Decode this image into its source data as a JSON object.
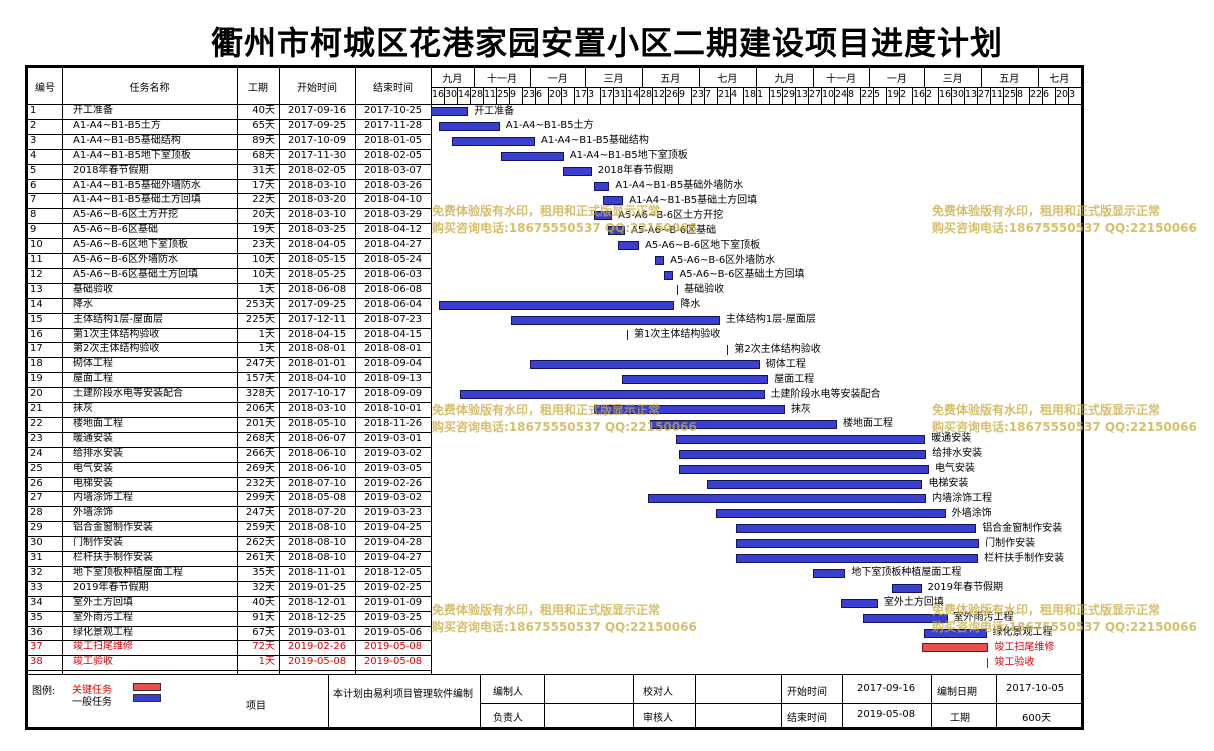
{
  "title": "衢州市柯城区花港家园安置小区二期建设项目进度计划",
  "columns": {
    "id": "编号",
    "name": "任务名称",
    "duration": "工期",
    "start": "开始时间",
    "end": "结束时间"
  },
  "months": [
    "九月",
    "十一月",
    "一月",
    "三月",
    "五月",
    "七月",
    "九月",
    "十一月",
    "一月",
    "三月",
    "五月",
    "七月"
  ],
  "days": [
    "16",
    "30",
    "14",
    "28",
    "11",
    "25",
    "9",
    "23",
    "6",
    "20",
    "3",
    "17",
    "3",
    "17",
    "31",
    "14",
    "28",
    "12",
    "26",
    "9",
    "23",
    "7",
    "21",
    "4",
    "18",
    "1",
    "15",
    "29",
    "13",
    "27",
    "10",
    "24",
    "8",
    "22",
    "5",
    "19",
    "2",
    "16",
    "2",
    "16",
    "30",
    "13",
    "27",
    "11",
    "25",
    "8",
    "22",
    "6",
    "20",
    "3"
  ],
  "tasks": [
    {
      "id": "1",
      "name": "开工准备",
      "dur": "40天",
      "start": "2017-09-16",
      "end": "2017-10-25",
      "label": "开工准备"
    },
    {
      "id": "2",
      "name": "A1-A4~B1-B5土方",
      "dur": "65天",
      "start": "2017-09-25",
      "end": "2017-11-28",
      "label": "A1-A4~B1-B5土方"
    },
    {
      "id": "3",
      "name": "A1-A4~B1-B5基础结构",
      "dur": "89天",
      "start": "2017-10-09",
      "end": "2018-01-05",
      "label": "A1-A4~B1-B5基础结构"
    },
    {
      "id": "4",
      "name": "A1-A4~B1-B5地下室顶板",
      "dur": "68天",
      "start": "2017-11-30",
      "end": "2018-02-05",
      "label": "A1-A4~B1-B5地下室顶板"
    },
    {
      "id": "5",
      "name": "2018年春节假期",
      "dur": "31天",
      "start": "2018-02-05",
      "end": "2018-03-07",
      "label": "2018年春节假期"
    },
    {
      "id": "6",
      "name": "A1-A4~B1-B5基础外墙防水",
      "dur": "17天",
      "start": "2018-03-10",
      "end": "2018-03-26",
      "label": "A1-A4~B1-B5基础外墙防水"
    },
    {
      "id": "7",
      "name": "A1-A4~B1-B5基础土方回填",
      "dur": "22天",
      "start": "2018-03-20",
      "end": "2018-04-10",
      "label": "A1-A4~B1-B5基础土方回填"
    },
    {
      "id": "8",
      "name": "A5-A6~B-6区土方开挖",
      "dur": "20天",
      "start": "2018-03-10",
      "end": "2018-03-29",
      "label": "A5-A6~B-6区土方开挖"
    },
    {
      "id": "9",
      "name": "A5-A6~B-6区基础",
      "dur": "19天",
      "start": "2018-03-25",
      "end": "2018-04-12",
      "label": "A5-A6~B-6区基础"
    },
    {
      "id": "10",
      "name": "A5-A6~B-6区地下室顶板",
      "dur": "23天",
      "start": "2018-04-05",
      "end": "2018-04-27",
      "label": "A5-A6~B-6区地下室顶板"
    },
    {
      "id": "11",
      "name": "A5-A6~B-6区外墙防水",
      "dur": "10天",
      "start": "2018-05-15",
      "end": "2018-05-24",
      "label": "A5-A6~B-6区外墙防水"
    },
    {
      "id": "12",
      "name": "A5-A6~B-6区基础土方回填",
      "dur": "10天",
      "start": "2018-05-25",
      "end": "2018-06-03",
      "label": "A5-A6~B-6区基础土方回填"
    },
    {
      "id": "13",
      "name": "基础验收",
      "dur": "1天",
      "start": "2018-06-08",
      "end": "2018-06-08",
      "label": "基础验收"
    },
    {
      "id": "14",
      "name": "降水",
      "dur": "253天",
      "start": "2017-09-25",
      "end": "2018-06-04",
      "label": "降水"
    },
    {
      "id": "15",
      "name": "主体结构1层-屋面层",
      "dur": "225天",
      "start": "2017-12-11",
      "end": "2018-07-23",
      "label": "主体结构1层-屋面层"
    },
    {
      "id": "16",
      "name": "第1次主体结构验收",
      "dur": "1天",
      "start": "2018-04-15",
      "end": "2018-04-15",
      "label": "第1次主体结构验收"
    },
    {
      "id": "17",
      "name": "第2次主体结构验收",
      "dur": "1天",
      "start": "2018-08-01",
      "end": "2018-08-01",
      "label": "第2次主体结构验收"
    },
    {
      "id": "18",
      "name": "砌体工程",
      "dur": "247天",
      "start": "2018-01-01",
      "end": "2018-09-04",
      "label": "砌体工程"
    },
    {
      "id": "19",
      "name": "屋面工程",
      "dur": "157天",
      "start": "2018-04-10",
      "end": "2018-09-13",
      "label": "屋面工程"
    },
    {
      "id": "20",
      "name": "土建阶段水电等安装配合",
      "dur": "328天",
      "start": "2017-10-17",
      "end": "2018-09-09",
      "label": "土建阶段水电等安装配合"
    },
    {
      "id": "21",
      "name": "抹灰",
      "dur": "206天",
      "start": "2018-03-10",
      "end": "2018-10-01",
      "label": "抹灰"
    },
    {
      "id": "22",
      "name": "楼地面工程",
      "dur": "201天",
      "start": "2018-05-10",
      "end": "2018-11-26",
      "label": "楼地面工程"
    },
    {
      "id": "23",
      "name": "暖通安装",
      "dur": "268天",
      "start": "2018-06-07",
      "end": "2019-03-01",
      "label": "暖通安装"
    },
    {
      "id": "24",
      "name": "给排水安装",
      "dur": "266天",
      "start": "2018-06-10",
      "end": "2019-03-02",
      "label": "给排水安装"
    },
    {
      "id": "25",
      "name": "电气安装",
      "dur": "269天",
      "start": "2018-06-10",
      "end": "2019-03-05",
      "label": "电气安装"
    },
    {
      "id": "26",
      "name": "电梯安装",
      "dur": "232天",
      "start": "2018-07-10",
      "end": "2019-02-26",
      "label": "电梯安装"
    },
    {
      "id": "27",
      "name": "内墙涂饰工程",
      "dur": "299天",
      "start": "2018-05-08",
      "end": "2019-03-02",
      "label": "内墙涂饰工程"
    },
    {
      "id": "28",
      "name": "外墙涂饰",
      "dur": "247天",
      "start": "2018-07-20",
      "end": "2019-03-23",
      "label": "外墙涂饰"
    },
    {
      "id": "29",
      "name": "铝合金窗制作安装",
      "dur": "259天",
      "start": "2018-08-10",
      "end": "2019-04-25",
      "label": "铝合金窗制作安装"
    },
    {
      "id": "30",
      "name": "门制作安装",
      "dur": "262天",
      "start": "2018-08-10",
      "end": "2019-04-28",
      "label": "门制作安装"
    },
    {
      "id": "31",
      "name": "栏杆扶手制作安装",
      "dur": "261天",
      "start": "2018-08-10",
      "end": "2019-04-27",
      "label": "栏杆扶手制作安装"
    },
    {
      "id": "32",
      "name": "地下室顶板种植屋面工程",
      "dur": "35天",
      "start": "2018-11-01",
      "end": "2018-12-05",
      "label": "地下室顶板种植屋面工程"
    },
    {
      "id": "33",
      "name": "2019年春节假期",
      "dur": "32天",
      "start": "2019-01-25",
      "end": "2019-02-25",
      "label": "2019年春节假期"
    },
    {
      "id": "34",
      "name": "室外土方回填",
      "dur": "40天",
      "start": "2018-12-01",
      "end": "2019-01-09",
      "label": "室外土方回填"
    },
    {
      "id": "35",
      "name": "室外雨污工程",
      "dur": "91天",
      "start": "2018-12-25",
      "end": "2019-03-25",
      "label": "室外雨污工程"
    },
    {
      "id": "36",
      "name": "绿化景观工程",
      "dur": "67天",
      "start": "2019-03-01",
      "end": "2019-05-06",
      "label": "绿化景观工程"
    },
    {
      "id": "37",
      "name": "竣工扫尾维修",
      "dur": "72天",
      "start": "2019-02-26",
      "end": "2019-05-08",
      "label": "竣工扫尾维修",
      "critical": true
    },
    {
      "id": "38",
      "name": "竣工验收",
      "dur": "1天",
      "start": "2019-05-08",
      "end": "2019-05-08",
      "label": "竣工验收",
      "critical": true
    }
  ],
  "legend": {
    "label": "图例:",
    "critical": "关键任务",
    "normal": "一般任务",
    "critical_color": "#e85050",
    "normal_color": "#3a3fcf"
  },
  "footer": {
    "project": "项目",
    "note": "本计划由易利项目管理软件编制",
    "prepared_by": "编制人",
    "checked_by": "校对人",
    "responsible": "负责人",
    "reviewed_by": "审核人",
    "start_label": "开始时间",
    "start_value": "2017-09-16",
    "end_label": "结束时间",
    "end_value": "2019-05-08",
    "date_label": "编制日期",
    "date_value": "2017-10-05",
    "duration_label": "工期",
    "duration_value": "600天"
  },
  "watermark": {
    "line1": "免费体验版有水印，租用和正式版显示正常",
    "line2": "购买咨询电话:18675550537 QQ:22150066"
  }
}
